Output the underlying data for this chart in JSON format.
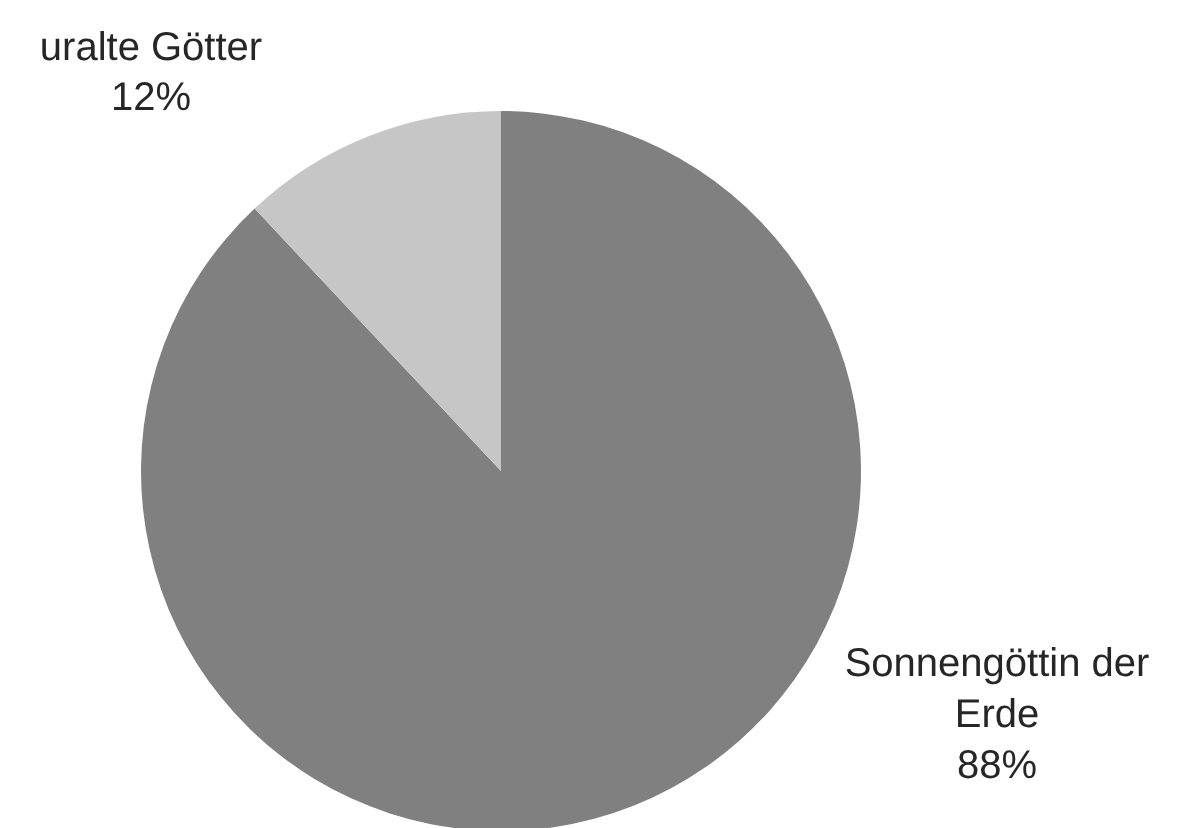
{
  "chart_data": {
    "type": "pie",
    "categories": [
      "Sonnengöttin der Erde",
      "uralte Götter"
    ],
    "values": [
      88,
      12
    ],
    "colors": [
      "#808080",
      "#c6c6c6"
    ],
    "value_labels": [
      "88%",
      "12%"
    ]
  }
}
